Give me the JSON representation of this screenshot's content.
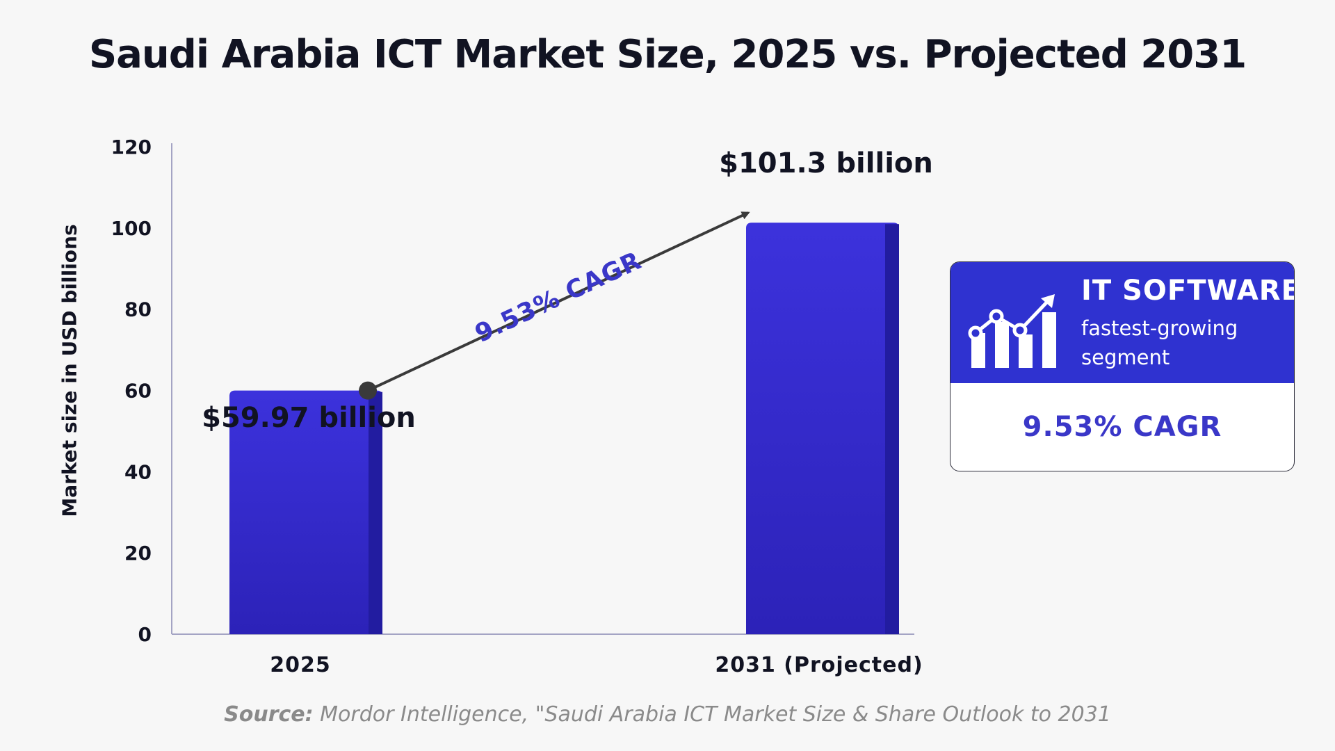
{
  "chart_data": {
    "type": "bar",
    "title": "Saudi Arabia ICT Market Size, 2025 vs. Projected 2031",
    "categories": [
      "2025",
      "2031 (Projected)"
    ],
    "values": [
      59.97,
      101.3
    ],
    "data_labels": [
      "$59.97 billion",
      "$101.3 billion"
    ],
    "ylabel": "Market size in USD billions",
    "xlabel": "",
    "ylim": [
      0,
      120
    ],
    "yticks": [
      0,
      20,
      40,
      60,
      80,
      100,
      120
    ],
    "grid": false,
    "annotation": "9.53% CAGR",
    "bar_color": "#3730d6",
    "bar_shade_color": "#221ca0",
    "annotation_color": "#3a37c8"
  },
  "callout": {
    "heading": "IT SOFTWARE",
    "subtext": "fastest-growing segment",
    "cagr": "9.53% CAGR",
    "icon": "growth-chart-icon",
    "header_color": "#2f32d0"
  },
  "source": {
    "label": "Source:",
    "text": "Mordor Intelligence, \"Saudi Arabia ICT Market Size & Share Outlook to 2031"
  }
}
